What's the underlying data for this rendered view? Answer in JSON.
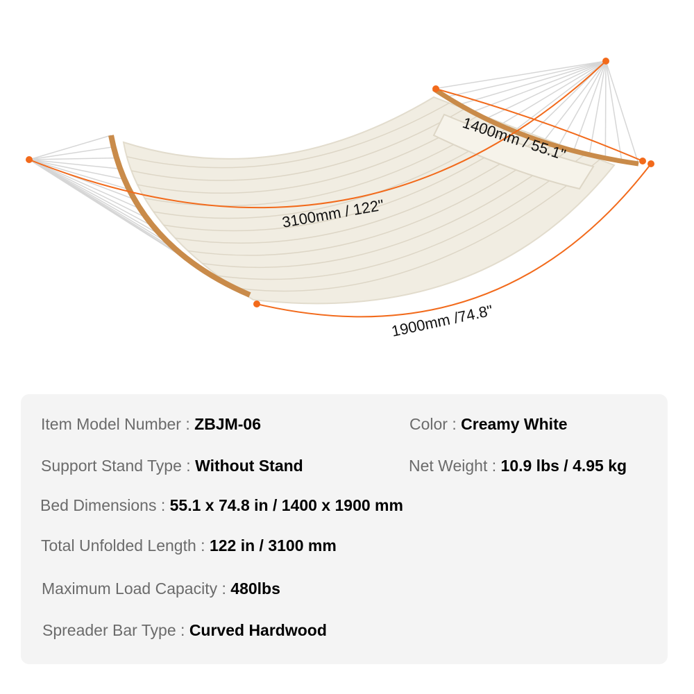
{
  "dimensions": {
    "total_length": "3100mm / 122\"",
    "bed_width": "1400mm / 55.1\"",
    "bed_length": "1900mm /74.8\""
  },
  "colors": {
    "accent": "#f26a1b",
    "fabric": "#f1ede2",
    "wood": "#c98b4a",
    "panel": "#f4f4f4"
  },
  "specs": [
    {
      "label": "Item Model Number : ",
      "value": "ZBJM-06"
    },
    {
      "label": "Color : ",
      "value": "Creamy White"
    },
    {
      "label": "Support Stand Type : ",
      "value": "Without Stand"
    },
    {
      "label": "Net Weight :  ",
      "value": "10.9 lbs / 4.95 kg"
    },
    {
      "label": "Bed Dimensions : ",
      "value": "55.1 x 74.8 in / 1400 x 1900 mm"
    },
    {
      "label": "Total Unfolded Length : ",
      "value": "122 in / 3100 mm"
    },
    {
      "label": "Maximum Load Capacity : ",
      "value": "480lbs"
    },
    {
      "label": "Spreader Bar Type : ",
      "value": "Curved Hardwood"
    }
  ]
}
